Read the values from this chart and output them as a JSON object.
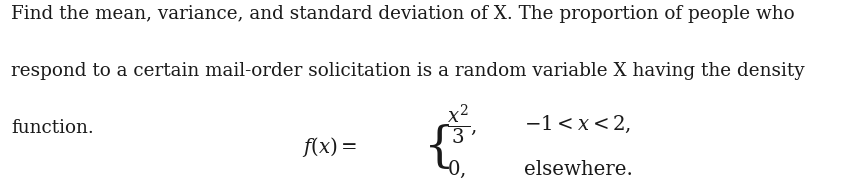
{
  "background_color": "#ffffff",
  "text_line1": "Find the mean, variance, and standard deviation of X. The proportion of people who",
  "text_line2": "respond to a certain mail-order solicitation is a random variable X having the density",
  "text_line3": "function.",
  "font_size_body": 13.2,
  "text_color": "#1a1a1a",
  "fig_width": 8.52,
  "fig_height": 1.78,
  "dpi": 100
}
